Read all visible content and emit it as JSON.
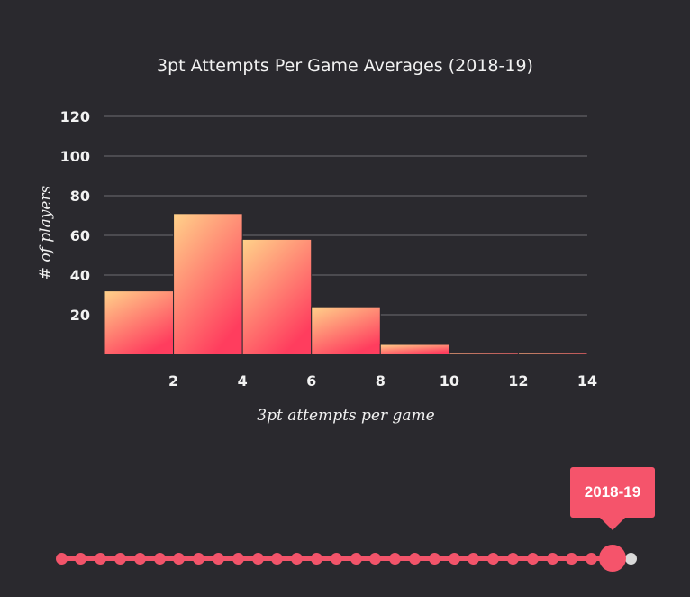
{
  "chart_data": {
    "type": "bar",
    "title": "3pt Attempts Per Game Averages (2018-19)",
    "xlabel": "3pt attempts per game",
    "ylabel": "# of players",
    "bins": [
      [
        0,
        2
      ],
      [
        2,
        4
      ],
      [
        4,
        6
      ],
      [
        6,
        8
      ],
      [
        8,
        10
      ],
      [
        10,
        12
      ],
      [
        12,
        14
      ]
    ],
    "values": [
      32,
      71,
      58,
      24,
      5,
      1,
      1
    ],
    "xlim": [
      0,
      14
    ],
    "ylim": [
      0,
      120
    ],
    "x_ticks": [
      2,
      4,
      6,
      8,
      10,
      12,
      14
    ],
    "y_ticks": [
      20,
      40,
      60,
      80,
      100,
      120
    ],
    "grid": true,
    "bar_gradient": [
      "#ffd28a",
      "#ff3d5e"
    ]
  },
  "slider": {
    "selected_label": "2018-19",
    "accent_color": "#f5546b",
    "inactive_color": "#d9d9d9"
  }
}
